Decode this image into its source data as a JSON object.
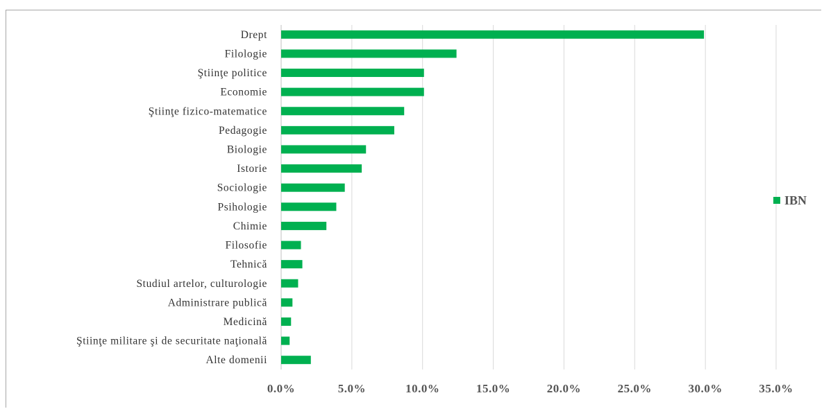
{
  "chart_data": {
    "type": "bar",
    "orientation": "horizontal",
    "categories": [
      "Drept",
      "Filologie",
      "Ştiinţe politice",
      "Economie",
      "Ştiinţe fizico-matematice",
      "Pedagogie",
      "Biologie",
      "Istorie",
      "Sociologie",
      "Psihologie",
      "Chimie",
      "Filosofie",
      "Tehnică",
      "Studiul artelor, culturologie",
      "Administrare publică",
      "Medicină",
      "Ştiinţe militare şi de securitate naţională",
      "Alte domenii"
    ],
    "series": [
      {
        "name": "IBN",
        "color": "#00b050",
        "values": [
          29.9,
          12.4,
          10.1,
          10.1,
          8.7,
          8.0,
          6.0,
          5.7,
          4.5,
          3.9,
          3.2,
          1.4,
          1.5,
          1.2,
          0.8,
          0.7,
          0.6,
          2.1
        ]
      }
    ],
    "xlim": [
      0,
      35
    ],
    "xticks": [
      "0.0%",
      "5.0%",
      "10.0%",
      "15.0%",
      "20.0%",
      "25.0%",
      "30.0%",
      "35.0%"
    ],
    "tick_values": [
      0,
      5,
      10,
      15,
      20,
      25,
      30,
      35
    ],
    "grid": true,
    "legend_position": "right",
    "title": "",
    "xlabel": "",
    "ylabel": ""
  }
}
